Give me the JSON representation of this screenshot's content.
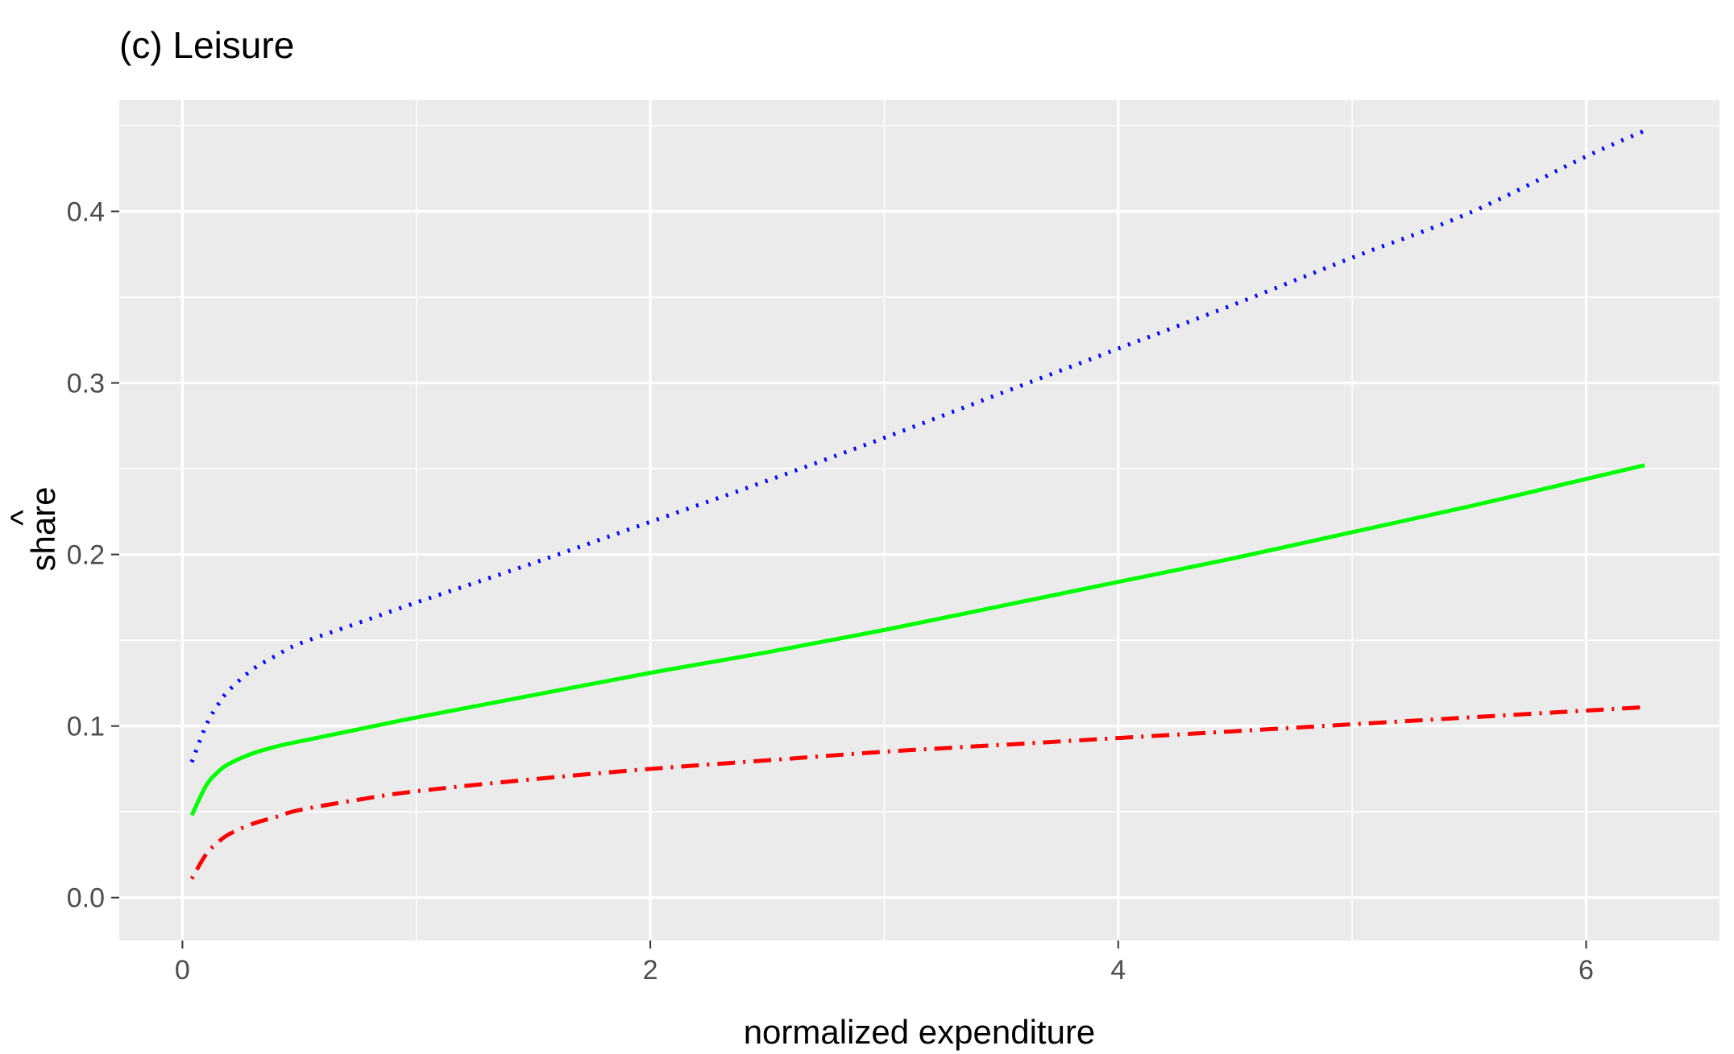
{
  "chart_data": {
    "type": "line",
    "title": "(c) Leisure",
    "xlabel": "normalized expenditure",
    "ylabel": "share",
    "ylabel_accent": "^",
    "xlim": [
      -0.27,
      6.57
    ],
    "ylim": [
      -0.025,
      0.465
    ],
    "x_ticks": [
      0,
      2,
      4,
      6
    ],
    "x_tick_labels": [
      "0",
      "2",
      "4",
      "6"
    ],
    "y_ticks": [
      0.0,
      0.1,
      0.2,
      0.3,
      0.4
    ],
    "y_tick_labels": [
      "0.0",
      "0.1",
      "0.2",
      "0.3",
      "0.4"
    ],
    "x_minor_ticks": [
      1,
      3,
      5
    ],
    "y_minor_ticks": [
      0.05,
      0.15,
      0.25,
      0.35,
      0.45
    ],
    "grid": true,
    "legend": "none",
    "colors": {
      "panel": "#ebebeb",
      "grid": "#ffffff",
      "text": "#4d4d4d"
    },
    "series": [
      {
        "color": "#0000ff",
        "line_style": "dotted",
        "x": [
          0.04,
          0.1,
          0.15,
          0.2,
          0.3,
          0.4,
          0.5,
          0.75,
          1.0,
          1.5,
          2.0,
          2.5,
          3.0,
          3.5,
          4.0,
          4.5,
          5.0,
          5.5,
          6.0,
          6.25
        ],
        "y": [
          0.079,
          0.1,
          0.112,
          0.121,
          0.133,
          0.141,
          0.148,
          0.16,
          0.172,
          0.195,
          0.219,
          0.243,
          0.268,
          0.294,
          0.32,
          0.346,
          0.373,
          0.399,
          0.432,
          0.447
        ]
      },
      {
        "color": "#00ff00",
        "line_style": "solid",
        "x": [
          0.04,
          0.1,
          0.15,
          0.2,
          0.3,
          0.4,
          0.5,
          0.75,
          1.0,
          1.5,
          2.0,
          2.5,
          3.0,
          3.5,
          4.0,
          4.5,
          5.0,
          5.5,
          6.0,
          6.25
        ],
        "y": [
          0.048,
          0.065,
          0.073,
          0.078,
          0.084,
          0.088,
          0.091,
          0.098,
          0.105,
          0.118,
          0.131,
          0.143,
          0.156,
          0.17,
          0.184,
          0.198,
          0.213,
          0.228,
          0.244,
          0.252
        ]
      },
      {
        "color": "#ff0000",
        "line_style": "dotdash",
        "x": [
          0.04,
          0.1,
          0.15,
          0.2,
          0.3,
          0.4,
          0.5,
          0.75,
          1.0,
          1.5,
          2.0,
          2.5,
          3.0,
          3.5,
          4.0,
          4.5,
          5.0,
          5.5,
          6.0,
          6.25
        ],
        "y": [
          0.011,
          0.025,
          0.032,
          0.037,
          0.043,
          0.047,
          0.051,
          0.057,
          0.062,
          0.069,
          0.075,
          0.08,
          0.085,
          0.089,
          0.093,
          0.097,
          0.101,
          0.105,
          0.109,
          0.111
        ]
      }
    ]
  }
}
